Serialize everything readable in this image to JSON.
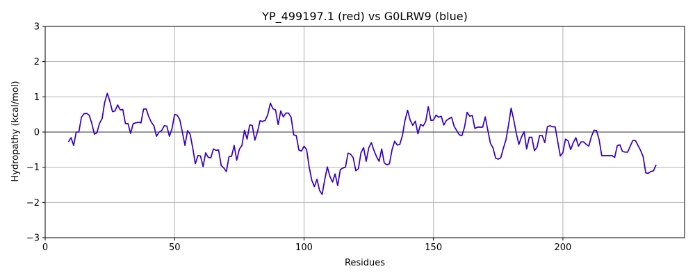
{
  "chart_data": {
    "type": "line",
    "title": "YP_499197.1 (red) vs G0LRW9 (blue)",
    "xlabel": "Residues",
    "ylabel": "Hydropathy (kcal/mol)",
    "xlim": [
      0,
      247
    ],
    "ylim": [
      -3,
      3
    ],
    "xticks": [
      0,
      50,
      100,
      150,
      200
    ],
    "yticks": [
      -3,
      -2,
      -1,
      0,
      1,
      2,
      3
    ],
    "grid": true,
    "colors": {
      "red": "#ff0000",
      "blue": "#0000ff",
      "zero_line": "#000000",
      "grid": "#b0b0b0"
    },
    "series": [
      {
        "name": "YP_499197.1",
        "color": "#ff0000",
        "x": [
          9,
          10,
          11,
          12,
          13,
          14,
          15,
          16,
          17,
          18,
          19,
          20,
          21,
          22,
          23,
          24,
          25,
          26,
          27,
          28,
          29,
          30,
          31,
          32,
          33,
          34,
          35,
          36,
          37,
          38,
          39,
          40,
          41,
          42,
          43,
          44,
          45,
          46,
          47,
          48,
          49,
          50,
          51,
          52,
          53,
          54,
          55,
          56,
          57,
          58,
          59,
          60,
          61,
          62,
          63,
          64,
          65,
          66,
          67,
          68,
          69,
          70,
          71,
          72,
          73,
          74,
          75,
          76,
          77,
          78,
          79,
          80,
          81,
          82,
          83,
          84,
          85,
          86,
          87,
          88,
          89,
          90,
          91,
          92,
          93,
          94,
          95,
          96,
          97,
          98,
          99,
          100,
          101,
          102,
          103,
          104,
          105,
          106,
          107,
          108,
          109,
          110,
          111,
          112,
          113,
          114,
          115,
          116,
          117,
          118,
          119,
          120,
          121,
          122,
          123,
          124,
          125,
          126,
          127,
          128,
          129,
          130,
          131,
          132,
          133,
          134,
          135,
          136,
          137,
          138,
          139,
          140,
          141,
          142,
          143,
          144,
          145,
          146,
          147,
          148,
          149,
          150,
          151,
          152,
          153,
          154,
          155,
          156,
          157,
          158,
          159,
          160,
          161,
          162,
          163,
          164,
          165,
          166,
          167,
          168,
          169,
          170,
          171,
          172,
          173,
          174,
          175,
          176,
          177,
          178,
          179,
          180,
          181,
          182,
          183,
          184,
          185,
          186,
          187,
          188,
          189,
          190,
          191,
          192,
          193,
          194,
          195,
          196,
          197,
          198,
          199,
          200,
          201,
          202,
          203,
          204,
          205,
          206,
          207,
          208,
          209,
          210,
          211,
          212,
          213,
          214,
          215,
          216,
          217,
          218,
          219,
          220,
          221,
          222,
          223,
          224,
          225,
          226,
          227,
          228,
          229,
          230,
          231,
          232,
          233,
          234,
          235,
          236
        ],
        "y": [
          -0.28,
          -0.16,
          -0.38,
          0.0,
          0.0,
          0.42,
          0.52,
          0.53,
          0.48,
          0.25,
          -0.06,
          -0.02,
          0.25,
          0.38,
          0.85,
          1.1,
          0.87,
          0.58,
          0.6,
          0.77,
          0.63,
          0.64,
          0.24,
          0.24,
          -0.04,
          0.24,
          0.26,
          0.28,
          0.26,
          0.65,
          0.66,
          0.44,
          0.28,
          0.18,
          -0.12,
          0.0,
          0.04,
          0.18,
          0.17,
          -0.12,
          0.1,
          0.5,
          0.48,
          0.35,
          0.0,
          -0.38,
          0.04,
          -0.06,
          -0.45,
          -0.9,
          -0.67,
          -0.68,
          -0.98,
          -0.59,
          -0.72,
          -0.73,
          -0.48,
          -0.52,
          -0.51,
          -0.95,
          -1.02,
          -1.12,
          -0.7,
          -0.69,
          -0.38,
          -0.8,
          -0.49,
          -0.38,
          0.05,
          -0.2,
          0.2,
          0.19,
          -0.23,
          0.0,
          0.32,
          0.3,
          0.33,
          0.5,
          0.82,
          0.66,
          0.63,
          0.21,
          0.6,
          0.43,
          0.54,
          0.54,
          0.42,
          -0.08,
          -0.1,
          -0.51,
          -0.54,
          -0.4,
          -0.5,
          -1.0,
          -1.37,
          -1.55,
          -1.34,
          -1.66,
          -1.77,
          -1.35,
          -0.99,
          -1.26,
          -1.42,
          -1.19,
          -1.52,
          -1.07,
          -1.02,
          -1.0,
          -0.6,
          -0.63,
          -0.73,
          -1.1,
          -1.04,
          -0.59,
          -0.44,
          -0.83,
          -0.45,
          -0.3,
          -0.52,
          -0.7,
          -0.83,
          -0.48,
          -0.88,
          -0.93,
          -0.9,
          -0.5,
          -0.26,
          -0.37,
          -0.35,
          -0.1,
          0.33,
          0.62,
          0.34,
          0.19,
          0.31,
          -0.05,
          0.22,
          0.17,
          0.3,
          0.72,
          0.33,
          0.34,
          0.48,
          0.42,
          0.45,
          0.2,
          0.33,
          0.38,
          0.42,
          0.16,
          0.04,
          -0.08,
          -0.1,
          0.14,
          0.56,
          0.45,
          0.47,
          0.1,
          0.14,
          0.14,
          0.14,
          0.43,
          0.05,
          -0.32,
          -0.45,
          -0.74,
          -0.77,
          -0.73,
          -0.46,
          -0.22,
          0.2,
          0.68,
          0.35,
          -0.04,
          -0.35,
          -0.14,
          0.01,
          -0.48,
          -0.15,
          -0.15,
          -0.53,
          -0.43,
          -0.1,
          -0.1,
          -0.3,
          0.15,
          0.18,
          0.15,
          0.15,
          -0.27,
          -0.68,
          -0.58,
          -0.2,
          -0.25,
          -0.5,
          -0.3,
          -0.16,
          -0.4,
          -0.28,
          -0.28,
          -0.35,
          -0.4,
          -0.13,
          0.05,
          0.04,
          -0.22,
          -0.67,
          -0.67,
          -0.67,
          -0.67,
          -0.67,
          -0.72,
          -0.39,
          -0.36,
          -0.55,
          -0.57,
          -0.57,
          -0.4,
          -0.24,
          -0.24,
          -0.38,
          -0.52,
          -0.7,
          -1.16,
          -1.17,
          -1.12,
          -1.1,
          -0.93
        ]
      },
      {
        "name": "G0LRW9",
        "color": "#0000ff",
        "x": [
          9,
          10,
          11,
          12,
          13,
          14,
          15,
          16,
          17,
          18,
          19,
          20,
          21,
          22,
          23,
          24,
          25,
          26,
          27,
          28,
          29,
          30,
          31,
          32,
          33,
          34,
          35,
          36,
          37,
          38,
          39,
          40,
          41,
          42,
          43,
          44,
          45,
          46,
          47,
          48,
          49,
          50,
          51,
          52,
          53,
          54,
          55,
          56,
          57,
          58,
          59,
          60,
          61,
          62,
          63,
          64,
          65,
          66,
          67,
          68,
          69,
          70,
          71,
          72,
          73,
          74,
          75,
          76,
          77,
          78,
          79,
          80,
          81,
          82,
          83,
          84,
          85,
          86,
          87,
          88,
          89,
          90,
          91,
          92,
          93,
          94,
          95,
          96,
          97,
          98,
          99,
          100,
          101,
          102,
          103,
          104,
          105,
          106,
          107,
          108,
          109,
          110,
          111,
          112,
          113,
          114,
          115,
          116,
          117,
          118,
          119,
          120,
          121,
          122,
          123,
          124,
          125,
          126,
          127,
          128,
          129,
          130,
          131,
          132,
          133,
          134,
          135,
          136,
          137,
          138,
          139,
          140,
          141,
          142,
          143,
          144,
          145,
          146,
          147,
          148,
          149,
          150,
          151,
          152,
          153,
          154,
          155,
          156,
          157,
          158,
          159,
          160,
          161,
          162,
          163,
          164,
          165,
          166,
          167,
          168,
          169,
          170,
          171,
          172,
          173,
          174,
          175,
          176,
          177,
          178,
          179,
          180,
          181,
          182,
          183,
          184,
          185,
          186,
          187,
          188,
          189,
          190,
          191,
          192,
          193,
          194,
          195,
          196,
          197,
          198,
          199,
          200,
          201,
          202,
          203,
          204,
          205,
          206,
          207,
          208,
          209,
          210,
          211,
          212,
          213,
          214,
          215,
          216,
          217,
          218,
          219,
          220,
          221,
          222,
          223,
          224,
          225,
          226,
          227,
          228,
          229,
          230,
          231,
          232,
          233,
          234,
          235,
          236
        ],
        "y": [
          -0.28,
          -0.16,
          -0.38,
          0.0,
          0.0,
          0.42,
          0.52,
          0.53,
          0.48,
          0.25,
          -0.06,
          -0.02,
          0.25,
          0.38,
          0.85,
          1.1,
          0.87,
          0.58,
          0.6,
          0.77,
          0.63,
          0.64,
          0.24,
          0.24,
          -0.04,
          0.24,
          0.26,
          0.28,
          0.26,
          0.65,
          0.66,
          0.44,
          0.28,
          0.18,
          -0.12,
          0.0,
          0.04,
          0.18,
          0.17,
          -0.12,
          0.1,
          0.5,
          0.48,
          0.35,
          0.0,
          -0.38,
          0.04,
          -0.06,
          -0.45,
          -0.9,
          -0.67,
          -0.68,
          -0.98,
          -0.59,
          -0.72,
          -0.73,
          -0.48,
          -0.52,
          -0.51,
          -0.95,
          -1.02,
          -1.12,
          -0.7,
          -0.69,
          -0.38,
          -0.8,
          -0.49,
          -0.38,
          0.05,
          -0.2,
          0.2,
          0.19,
          -0.23,
          0.0,
          0.32,
          0.3,
          0.33,
          0.5,
          0.82,
          0.66,
          0.63,
          0.21,
          0.6,
          0.43,
          0.54,
          0.54,
          0.42,
          -0.08,
          -0.1,
          -0.51,
          -0.54,
          -0.4,
          -0.5,
          -1.0,
          -1.37,
          -1.55,
          -1.34,
          -1.66,
          -1.77,
          -1.35,
          -0.99,
          -1.26,
          -1.42,
          -1.19,
          -1.52,
          -1.07,
          -1.02,
          -1.0,
          -0.6,
          -0.63,
          -0.73,
          -1.1,
          -1.04,
          -0.59,
          -0.44,
          -0.83,
          -0.45,
          -0.3,
          -0.52,
          -0.7,
          -0.83,
          -0.48,
          -0.88,
          -0.93,
          -0.9,
          -0.5,
          -0.26,
          -0.37,
          -0.35,
          -0.1,
          0.33,
          0.62,
          0.34,
          0.19,
          0.31,
          -0.05,
          0.22,
          0.17,
          0.3,
          0.72,
          0.33,
          0.34,
          0.48,
          0.42,
          0.45,
          0.2,
          0.33,
          0.38,
          0.42,
          0.16,
          0.04,
          -0.08,
          -0.1,
          0.14,
          0.56,
          0.45,
          0.47,
          0.1,
          0.14,
          0.14,
          0.14,
          0.43,
          0.05,
          -0.32,
          -0.45,
          -0.74,
          -0.77,
          -0.73,
          -0.46,
          -0.22,
          0.2,
          0.68,
          0.35,
          -0.04,
          -0.35,
          -0.14,
          0.01,
          -0.48,
          -0.15,
          -0.15,
          -0.53,
          -0.43,
          -0.1,
          -0.1,
          -0.3,
          0.15,
          0.18,
          0.15,
          0.15,
          -0.27,
          -0.68,
          -0.58,
          -0.2,
          -0.25,
          -0.5,
          -0.3,
          -0.16,
          -0.4,
          -0.28,
          -0.28,
          -0.35,
          -0.4,
          -0.13,
          0.05,
          0.04,
          -0.22,
          -0.67,
          -0.67,
          -0.67,
          -0.67,
          -0.67,
          -0.72,
          -0.39,
          -0.36,
          -0.55,
          -0.57,
          -0.57,
          -0.4,
          -0.24,
          -0.24,
          -0.38,
          -0.52,
          -0.7,
          -1.16,
          -1.17,
          -1.12,
          -1.1,
          -0.93
        ]
      }
    ]
  }
}
